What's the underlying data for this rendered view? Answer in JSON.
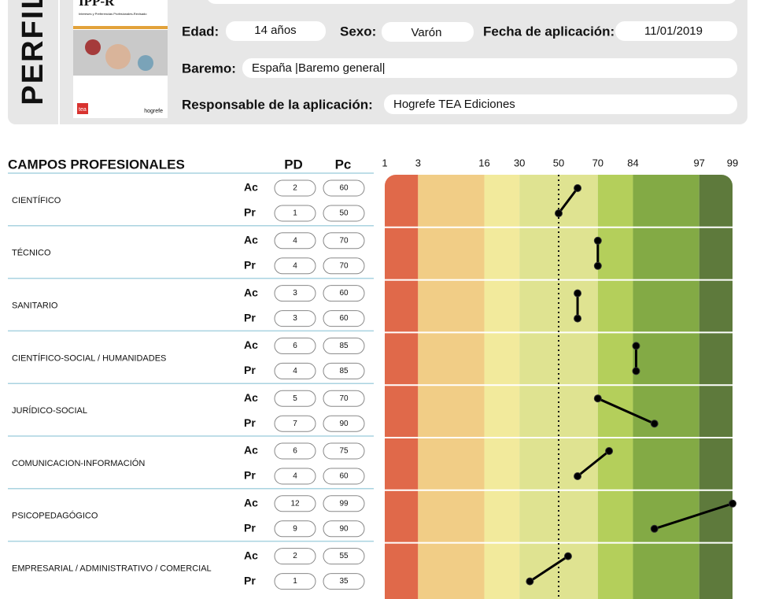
{
  "header": {
    "title": "PERFIL",
    "cover": {
      "title": "IPP-R",
      "subtitle": "Intereses y Preferencias Profesionales-Revisado",
      "brand1": "tea",
      "brand2": "hogrefe"
    },
    "fields": {
      "age_label": "Edad:",
      "age": "14  años",
      "sex_label": "Sexo:",
      "sex": "Varón",
      "date_label": "Fecha de aplicación:",
      "date": "11/01/2019",
      "norm_label": "Baremo:",
      "norm": "España |Baremo general|",
      "responsible_label": "Responsable de la aplicación:",
      "responsible": "Hogrefe TEA Ediciones"
    }
  },
  "profile": {
    "title": "CAMPOS PROFESIONALES",
    "pd_header": "PD",
    "pc_header": "Pc",
    "scale": "probit",
    "ticks": [
      1,
      3,
      16,
      30,
      50,
      70,
      84,
      97,
      99
    ],
    "band_colors": [
      "#e0694a",
      "#f1cd86",
      "#f2ea9c",
      "#dfe391",
      "#dfe391",
      "#b4cf5b",
      "#83aa45",
      "#5e7a3c"
    ],
    "reference_line": 50,
    "fields": [
      {
        "name": "CIENTÍFICO",
        "rows": [
          {
            "label": "Ac",
            "pd": 2,
            "pc": 60
          },
          {
            "label": "Pr",
            "pd": 1,
            "pc": 50
          }
        ]
      },
      {
        "name": "TÉCNICO",
        "rows": [
          {
            "label": "Ac",
            "pd": 4,
            "pc": 70
          },
          {
            "label": "Pr",
            "pd": 4,
            "pc": 70
          }
        ]
      },
      {
        "name": "SANITARIO",
        "rows": [
          {
            "label": "Ac",
            "pd": 3,
            "pc": 60
          },
          {
            "label": "Pr",
            "pd": 3,
            "pc": 60
          }
        ]
      },
      {
        "name": "CIENTÍFICO-SOCIAL / HUMANIDADES",
        "rows": [
          {
            "label": "Ac",
            "pd": 6,
            "pc": 85
          },
          {
            "label": "Pr",
            "pd": 4,
            "pc": 85
          }
        ]
      },
      {
        "name": "JURÍDICO-SOCIAL",
        "rows": [
          {
            "label": "Ac",
            "pd": 5,
            "pc": 70
          },
          {
            "label": "Pr",
            "pd": 7,
            "pc": 90
          }
        ]
      },
      {
        "name": "COMUNICACION-INFORMACIÓN",
        "rows": [
          {
            "label": "Ac",
            "pd": 6,
            "pc": 75
          },
          {
            "label": "Pr",
            "pd": 4,
            "pc": 60
          }
        ]
      },
      {
        "name": "PSICOPEDAGÓGICO",
        "rows": [
          {
            "label": "Ac",
            "pd": 12,
            "pc": 99
          },
          {
            "label": "Pr",
            "pd": 9,
            "pc": 90
          }
        ]
      },
      {
        "name": "EMPRESARIAL / ADMINISTRATIVO / COMERCIAL",
        "rows": [
          {
            "label": "Ac",
            "pd": 2,
            "pc": 55
          },
          {
            "label": "Pr",
            "pd": 1,
            "pc": 35
          }
        ]
      }
    ]
  }
}
